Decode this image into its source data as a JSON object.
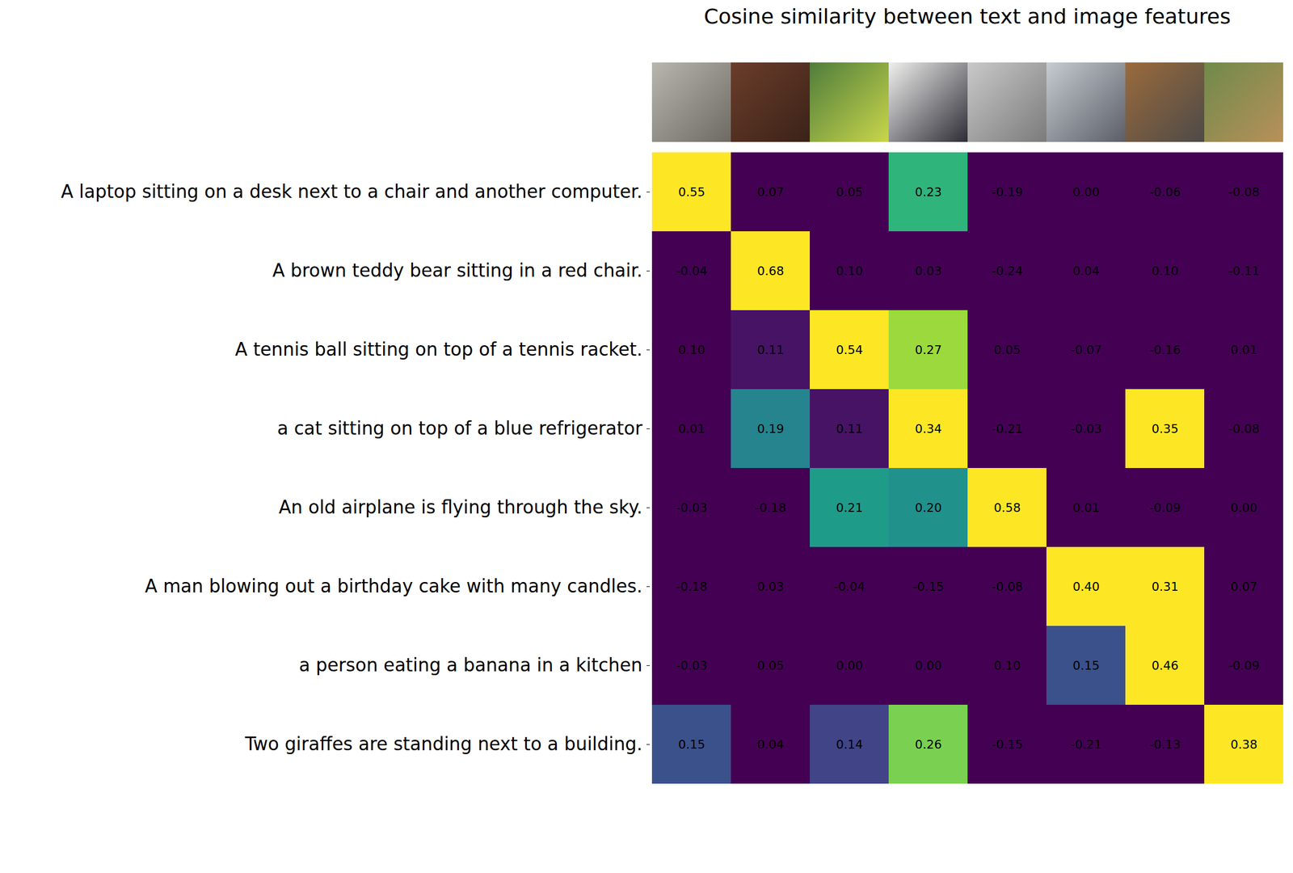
{
  "chart_data": {
    "type": "heatmap",
    "title": "Cosine similarity between text and image features",
    "categories": [
      null,
      null,
      null,
      null,
      null,
      null,
      null,
      null
    ],
    "rows": [
      "A laptop sitting on a desk next to a chair and another computer.",
      "A brown teddy bear sitting in a red chair.",
      "A tennis ball sitting on top of a tennis racket.",
      "a cat sitting on top of a blue refrigerator",
      "An old airplane is flying through the sky.",
      "A man blowing out a birthday cake with many candles.",
      "a person eating a banana in a kitchen",
      "Two giraffes are standing next to a building."
    ],
    "cells": [
      [
        0.55,
        0.07,
        0.05,
        0.23,
        -0.19,
        0.0,
        -0.06,
        -0.08
      ],
      [
        -0.04,
        0.68,
        0.1,
        0.03,
        -0.24,
        0.04,
        0.1,
        -0.11
      ],
      [
        0.1,
        0.11,
        0.54,
        0.27,
        0.05,
        -0.07,
        -0.16,
        0.01
      ],
      [
        0.01,
        0.19,
        0.11,
        0.34,
        -0.21,
        -0.03,
        0.35,
        -0.08
      ],
      [
        -0.03,
        -0.18,
        0.21,
        0.2,
        0.58,
        0.01,
        -0.09,
        0.0
      ],
      [
        -0.18,
        0.03,
        -0.04,
        -0.15,
        -0.08,
        0.4,
        0.31,
        0.07
      ],
      [
        -0.03,
        0.05,
        0.0,
        0.0,
        0.1,
        0.15,
        0.46,
        -0.09
      ],
      [
        0.15,
        0.04,
        0.14,
        0.26,
        -0.15,
        -0.21,
        -0.13,
        0.38
      ]
    ],
    "value_labels": [
      [
        "0.55",
        "0.07",
        "0.05",
        "0.23",
        "-0.19",
        "0.00",
        "-0.06",
        "-0.08"
      ],
      [
        "-0.04",
        "0.68",
        "0.10",
        "0.03",
        "-0.24",
        "0.04",
        "0.10",
        "-0.11"
      ],
      [
        "0.10",
        "0.11",
        "0.54",
        "0.27",
        "0.05",
        "-0.07",
        "-0.16",
        "0.01"
      ],
      [
        "0.01",
        "0.19",
        "0.11",
        "0.34",
        "-0.21",
        "-0.03",
        "0.35",
        "-0.08"
      ],
      [
        "-0.03",
        "-0.18",
        "0.21",
        "0.20",
        "0.58",
        "0.01",
        "-0.09",
        "0.00"
      ],
      [
        "-0.18",
        "0.03",
        "-0.04",
        "-0.15",
        "-0.08",
        "0.40",
        "0.31",
        "0.07"
      ],
      [
        "-0.03",
        "0.05",
        "0.00",
        "0.00",
        "0.10",
        "0.15",
        "0.46",
        "-0.09"
      ],
      [
        "0.15",
        "0.04",
        "0.14",
        "0.26",
        "-0.15",
        "-0.21",
        "-0.13",
        "0.38"
      ]
    ],
    "color_range": [
      0.1,
      0.3
    ],
    "color": "viridis",
    "data_labels": true,
    "tick_labels": "y"
  }
}
